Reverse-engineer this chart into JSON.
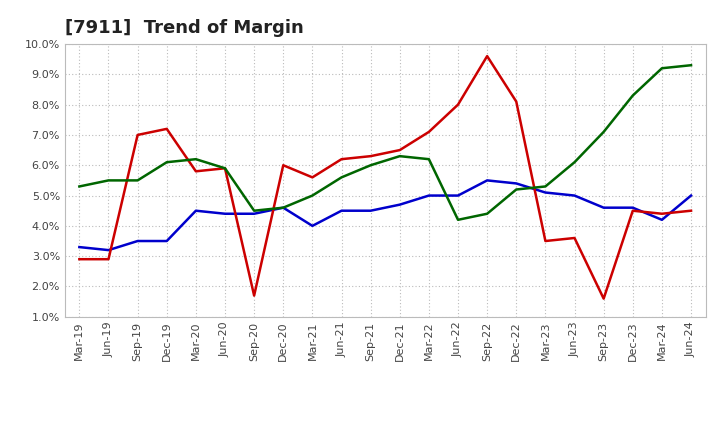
{
  "title": "[7911]  Trend of Margin",
  "x_labels": [
    "Mar-19",
    "Jun-19",
    "Sep-19",
    "Dec-19",
    "Mar-20",
    "Jun-20",
    "Sep-20",
    "Dec-20",
    "Mar-21",
    "Jun-21",
    "Sep-21",
    "Dec-21",
    "Mar-22",
    "Jun-22",
    "Sep-22",
    "Dec-22",
    "Mar-23",
    "Jun-23",
    "Sep-23",
    "Dec-23",
    "Mar-24",
    "Jun-24"
  ],
  "ordinary_income": [
    3.3,
    3.2,
    3.5,
    3.5,
    4.5,
    4.4,
    4.4,
    4.6,
    4.0,
    4.5,
    4.5,
    4.7,
    5.0,
    5.0,
    5.5,
    5.4,
    5.1,
    5.0,
    4.6,
    4.6,
    4.2,
    5.0
  ],
  "net_income": [
    2.9,
    2.9,
    7.0,
    7.2,
    5.8,
    5.9,
    1.7,
    6.0,
    5.6,
    6.2,
    6.3,
    6.5,
    7.1,
    8.0,
    9.6,
    8.1,
    3.5,
    3.6,
    1.6,
    4.5,
    4.4,
    4.5
  ],
  "operating_cashflow": [
    5.3,
    5.5,
    5.5,
    6.1,
    6.2,
    5.9,
    4.5,
    4.6,
    5.0,
    5.6,
    6.0,
    6.3,
    6.2,
    4.2,
    4.4,
    5.2,
    5.3,
    6.1,
    7.1,
    8.3,
    9.2,
    9.3
  ],
  "ylim": [
    1.0,
    10.0
  ],
  "yticks": [
    1.0,
    2.0,
    3.0,
    4.0,
    5.0,
    6.0,
    7.0,
    8.0,
    9.0,
    10.0
  ],
  "line_colors": {
    "ordinary_income": "#0000CC",
    "net_income": "#CC0000",
    "operating_cashflow": "#006600"
  },
  "background_color": "#FFFFFF",
  "grid_color": "#BBBBBB",
  "title_fontsize": 13,
  "axis_fontsize": 8
}
